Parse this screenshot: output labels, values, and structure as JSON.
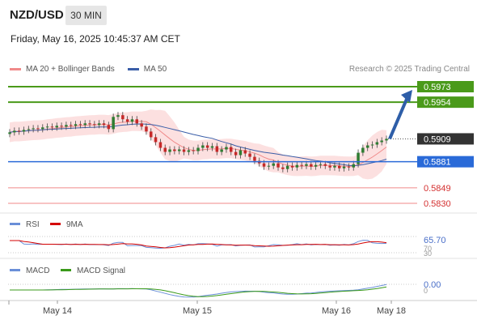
{
  "header": {
    "pair": "NZD/USD",
    "timeframe": "30 MIN",
    "datetime": "Friday, May 16, 2025 10:45:37 AM CET",
    "credit": "Research © 2025 Trading Central"
  },
  "legend": [
    {
      "label": "MA 20 + Bollinger Bands",
      "color": "#f08a8a"
    },
    {
      "label": "MA 50",
      "color": "#3a5ea8"
    }
  ],
  "rsi_legend": [
    {
      "label": "RSI",
      "color": "#6a8fd8"
    },
    {
      "label": "9MA",
      "color": "#d40000"
    }
  ],
  "macd_legend": [
    {
      "label": "MACD",
      "color": "#6a8fd8"
    },
    {
      "label": "MACD Signal",
      "color": "#3a9a1a"
    }
  ],
  "price_levels": [
    {
      "value": "0.5973",
      "kind": "resistance",
      "color": "#4a9a1a"
    },
    {
      "value": "0.5954",
      "kind": "resistance",
      "color": "#4a9a1a"
    },
    {
      "value": "0.5909",
      "kind": "current",
      "color": "#333333"
    },
    {
      "value": "0.5881",
      "kind": "pivot",
      "color": "#2a6ad8"
    },
    {
      "value": "0.5849",
      "kind": "support",
      "color": "#d43030"
    },
    {
      "value": "0.5830",
      "kind": "support",
      "color": "#d43030"
    }
  ],
  "rsi_labels": {
    "value": "65.70",
    "upper": "70",
    "lower": "30"
  },
  "macd_labels": {
    "value": "0.00",
    "zero": "0"
  },
  "x_axis": [
    "May 14",
    "May 15",
    "May 16",
    "May 18"
  ],
  "chart_data": {
    "type": "candlestick",
    "title": "NZD/USD 30 MIN",
    "ylim": [
      0.582,
      0.598
    ],
    "x_ticks": [
      "May 14",
      "May 15",
      "May 16",
      "May 18"
    ],
    "closes": [
      0.5917,
      0.5919,
      0.5918,
      0.592,
      0.5921,
      0.5922,
      0.5921,
      0.5923,
      0.5924,
      0.5923,
      0.5925,
      0.5924,
      0.5926,
      0.5925,
      0.5927,
      0.5926,
      0.5928,
      0.5927,
      0.5926,
      0.5928,
      0.5926,
      0.5921,
      0.5936,
      0.5938,
      0.5933,
      0.593,
      0.5933,
      0.5928,
      0.5924,
      0.5918,
      0.5911,
      0.5905,
      0.5898,
      0.5893,
      0.5896,
      0.5894,
      0.5896,
      0.5893,
      0.5895,
      0.5894,
      0.5898,
      0.5901,
      0.5898,
      0.59,
      0.5893,
      0.5896,
      0.5899,
      0.5893,
      0.5889,
      0.5895,
      0.5891,
      0.5887,
      0.5882,
      0.5879,
      0.5875,
      0.5876,
      0.5879,
      0.5874,
      0.5872,
      0.5876,
      0.5874,
      0.5877,
      0.5876,
      0.5878,
      0.5875,
      0.5877,
      0.5878,
      0.5876,
      0.5874,
      0.5876,
      0.5873,
      0.5875,
      0.5874,
      0.5878,
      0.5892,
      0.5898,
      0.5901,
      0.5902,
      0.5905,
      0.5907,
      0.5909
    ],
    "ma20_bollinger": {
      "middle_start": 0.5922,
      "middle_end": 0.5898
    },
    "ma50": {
      "start": 0.5895,
      "end": 0.588
    },
    "projection": {
      "from": 0.5909,
      "to": 0.5973
    },
    "rsi": {
      "last": 65.7,
      "levels": [
        70,
        30
      ]
    },
    "macd": {
      "last": 0.0
    }
  }
}
